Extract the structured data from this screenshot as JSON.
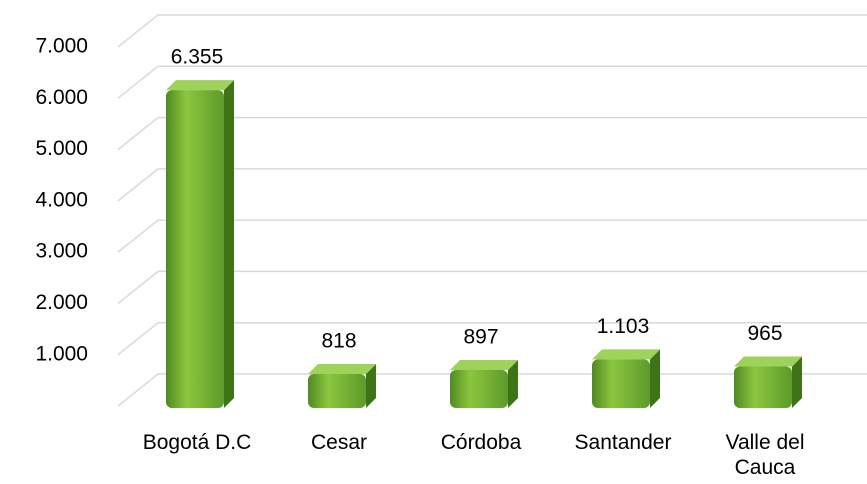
{
  "chart_data": {
    "type": "bar3d",
    "categories": [
      "Bogotá D.C",
      "Cesar",
      "Córdoba",
      "Santander",
      "Valle del Cauca"
    ],
    "values": [
      6355,
      818,
      897,
      1103,
      965
    ],
    "value_labels": [
      "6.355",
      "818",
      "897",
      "1.103",
      "965"
    ],
    "color": "#70ad47",
    "ylim": [
      0,
      7000
    ],
    "yticks": [
      {
        "value": 1000,
        "label": "1.000"
      },
      {
        "value": 2000,
        "label": "2.000"
      },
      {
        "value": 3000,
        "label": "3.000"
      },
      {
        "value": 4000,
        "label": "4.000"
      },
      {
        "value": 5000,
        "label": "5.000"
      },
      {
        "value": 6000,
        "label": "6.000"
      },
      {
        "value": 7000,
        "label": "7.000"
      }
    ],
    "grid": true
  }
}
